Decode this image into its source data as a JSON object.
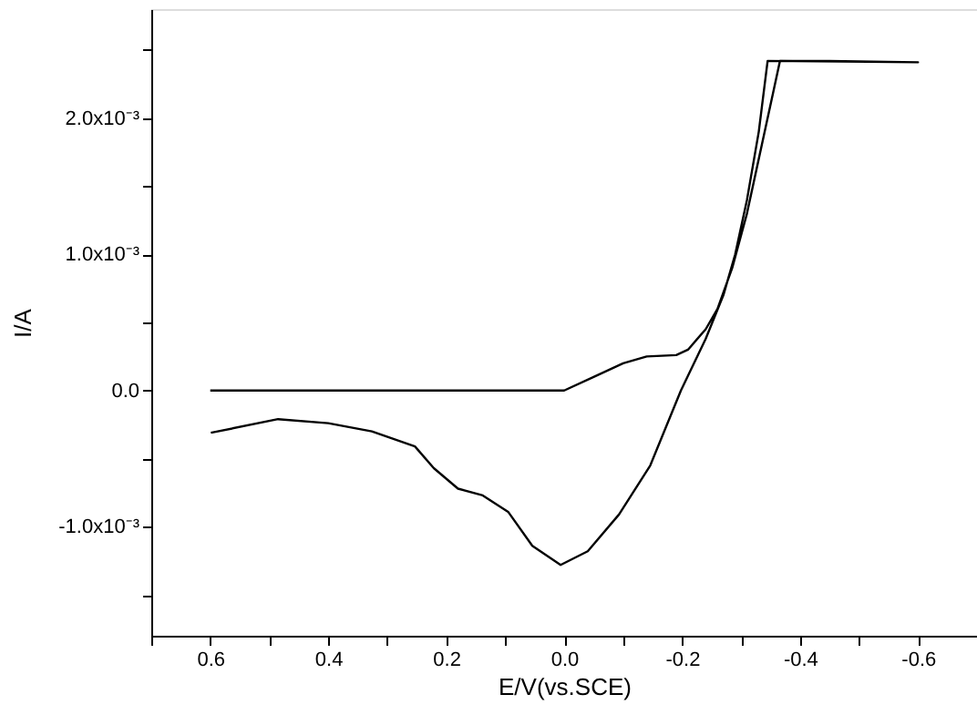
{
  "chart_data": {
    "type": "line",
    "xlabel": "E/V(vs.SCE)",
    "ylabel": "I/A",
    "xlim": [
      0.7,
      -0.7
    ],
    "ylim": [
      -0.0018,
      0.0028
    ],
    "xticks": [
      {
        "value": 0.7,
        "label": null
      },
      0.6,
      {
        "value": 0.5,
        "label": null
      },
      0.4,
      {
        "value": 0.3,
        "label": null
      },
      0.2,
      {
        "value": 0.1,
        "label": null
      },
      {
        "value": 0.0,
        "label": "0.0"
      },
      {
        "value": -0.1,
        "label": null
      },
      -0.2,
      {
        "value": -0.3,
        "label": null
      },
      -0.4,
      {
        "value": -0.5,
        "label": null
      },
      -0.6
    ],
    "yticks": [
      {
        "value": -0.0015,
        "label": null
      },
      {
        "value": -0.001,
        "label": "-1.0x10⁻³"
      },
      {
        "value": -0.0005,
        "label": null
      },
      {
        "value": 0.0,
        "label": "0.0"
      },
      {
        "value": 0.0005,
        "label": null
      },
      {
        "value": 0.001,
        "label": "1.0x10⁻³"
      },
      {
        "value": 0.0015,
        "label": null
      },
      {
        "value": 0.002,
        "label": "2.0x10⁻³"
      },
      {
        "value": 0.0025,
        "label": null
      }
    ],
    "grid": false,
    "line_style": "solid",
    "series": [
      {
        "color": "#000000",
        "x": [
          0.6,
          0.3,
          0.05,
          0.0,
          -0.05,
          -0.1,
          -0.14,
          -0.19,
          -0.21,
          -0.24,
          -0.26,
          -0.285,
          -0.31,
          -0.335,
          -0.355,
          -0.366,
          -0.45,
          -0.6,
          -0.345,
          -0.33,
          -0.31,
          -0.29,
          -0.27,
          -0.24,
          -0.198,
          -0.146,
          -0.093,
          -0.04,
          0.006,
          0.054,
          0.095,
          0.138,
          0.18,
          0.221,
          0.253,
          0.326,
          0.4,
          0.485,
          0.599
        ],
        "values": [
          0.0,
          0.0,
          0.0,
          0.0,
          0.0001,
          0.0002,
          0.00025,
          0.00026,
          0.0003,
          0.00045,
          0.0006,
          0.0009,
          0.0013,
          0.0018,
          0.0022,
          0.00242,
          0.00242,
          0.00241,
          0.00242,
          0.0019,
          0.0014,
          0.001,
          0.0007,
          0.00038,
          0.0,
          -0.00055,
          -0.00091,
          -0.00118,
          -0.00128,
          -0.00114,
          -0.00089,
          -0.00077,
          -0.00072,
          -0.00057,
          -0.00041,
          -0.0003,
          -0.00024,
          -0.00021,
          -0.00031
        ]
      }
    ]
  }
}
